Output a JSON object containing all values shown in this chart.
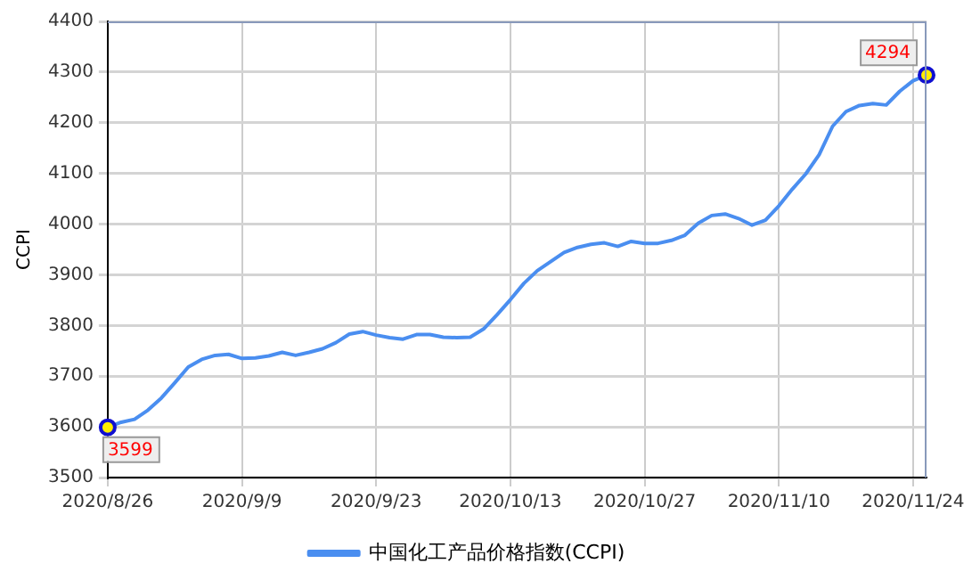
{
  "chart_data": {
    "type": "line",
    "ylabel": "CCPI",
    "categories": [
      "2020/8/26",
      null,
      null,
      null,
      null,
      null,
      null,
      null,
      null,
      null,
      "2020/9/9",
      null,
      null,
      null,
      null,
      null,
      null,
      null,
      null,
      null,
      "2020/9/23",
      null,
      null,
      null,
      null,
      null,
      null,
      null,
      null,
      null,
      "2020/10/13",
      null,
      null,
      null,
      null,
      null,
      null,
      null,
      null,
      null,
      "2020/10/27",
      null,
      null,
      null,
      null,
      null,
      null,
      null,
      null,
      null,
      "2020/11/10",
      null,
      null,
      null,
      null,
      null,
      null,
      null,
      null,
      null,
      "2020/11/24",
      null
    ],
    "series": [
      {
        "name": "中国化工产品价格指数(CCPI)",
        "color": "#4a8ef0",
        "values": [
          3599,
          3609,
          3615,
          3633,
          3657,
          3687,
          3718,
          3733,
          3741,
          3743,
          3735,
          3736,
          3740,
          3747,
          3741,
          3747,
          3754,
          3766,
          3783,
          3788,
          3781,
          3776,
          3773,
          3782,
          3782,
          3777,
          3776,
          3777,
          3793,
          3821,
          3851,
          3883,
          3908,
          3926,
          3944,
          3954,
          3960,
          3963,
          3956,
          3966,
          3962,
          3962,
          3968,
          3978,
          4002,
          4017,
          4020,
          4011,
          3998,
          4008,
          4036,
          4069,
          4099,
          4137,
          4193,
          4222,
          4234,
          4238,
          4235,
          4262,
          4283,
          4294
        ],
        "value_labels": [
          "3599",
          null,
          null,
          null,
          null,
          null,
          null,
          null,
          null,
          null,
          null,
          null,
          null,
          null,
          null,
          null,
          null,
          null,
          null,
          null,
          null,
          null,
          null,
          null,
          null,
          null,
          null,
          null,
          null,
          null,
          null,
          null,
          null,
          null,
          null,
          null,
          null,
          null,
          null,
          null,
          null,
          null,
          null,
          null,
          null,
          null,
          null,
          null,
          null,
          null,
          null,
          null,
          null,
          null,
          null,
          null,
          null,
          null,
          null,
          null,
          null,
          "4294"
        ]
      }
    ],
    "ylim": [
      3500,
      4400
    ],
    "yticks": [
      3500,
      3600,
      3700,
      3800,
      3900,
      4000,
      4100,
      4200,
      4300,
      4400
    ],
    "grid": true,
    "legend": "bottom",
    "line_style": "solid"
  }
}
